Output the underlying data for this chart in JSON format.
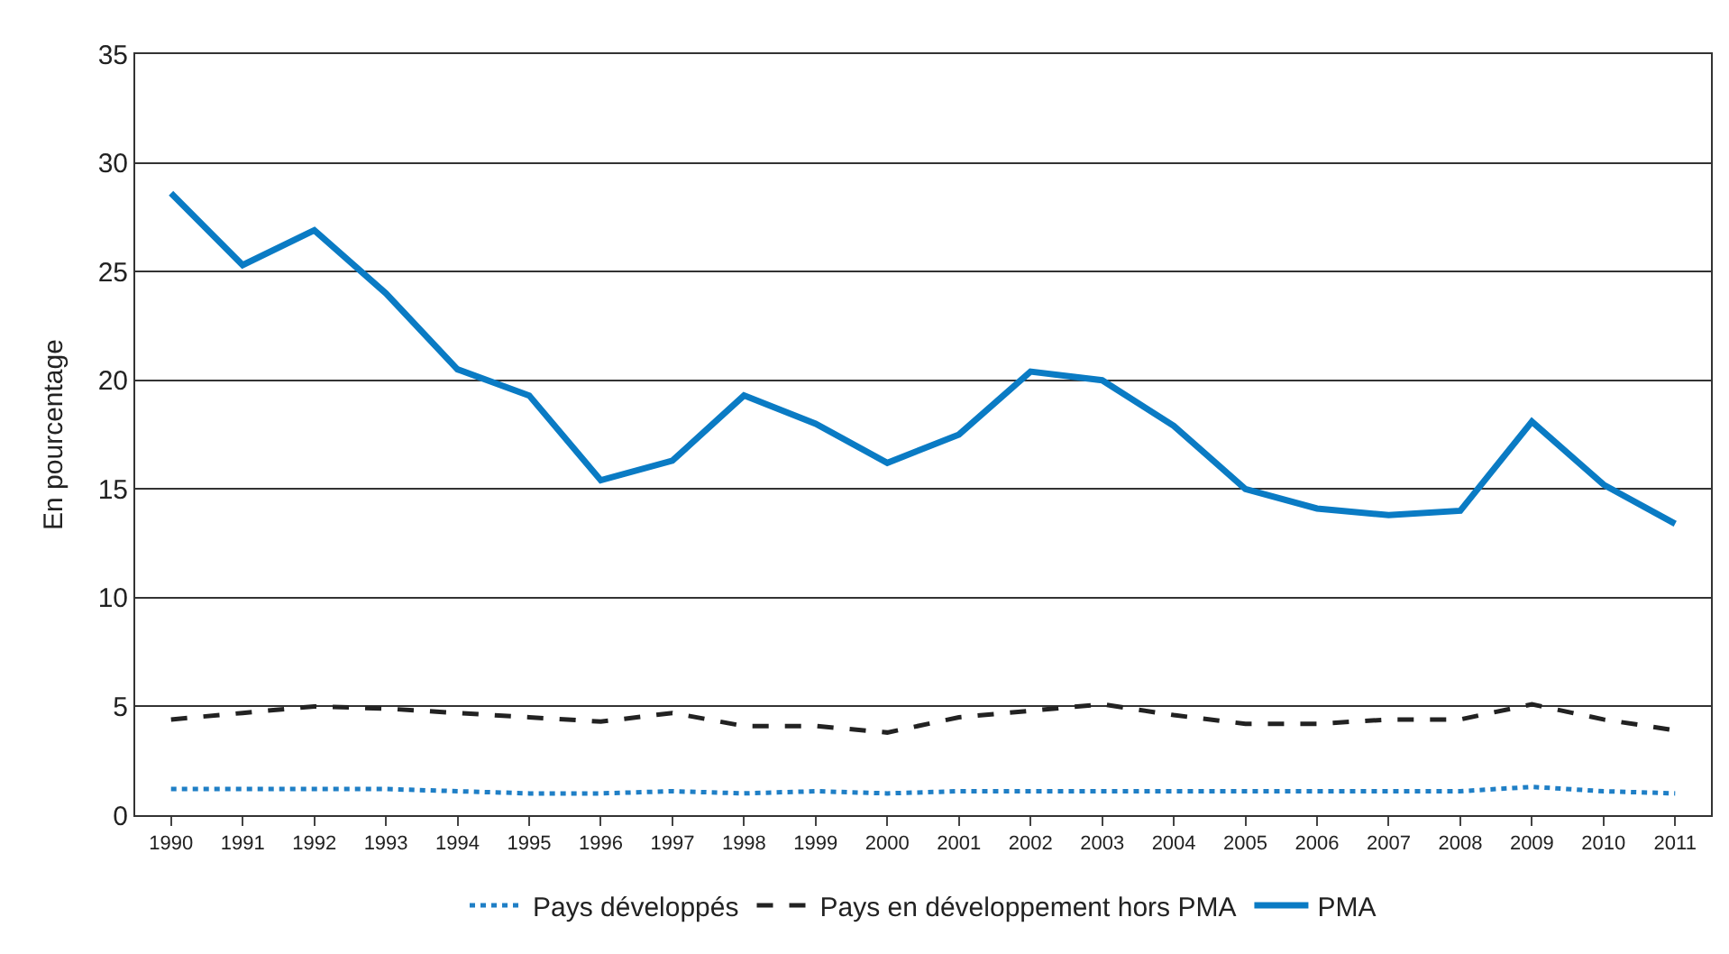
{
  "chart_data": {
    "type": "line",
    "ylabel": "En pourcentage",
    "categories": [
      "1990",
      "1991",
      "1992",
      "1993",
      "1994",
      "1995",
      "1996",
      "1997",
      "1998",
      "1999",
      "2000",
      "2001",
      "2002",
      "2003",
      "2004",
      "2005",
      "2006",
      "2007",
      "2008",
      "2009",
      "2010",
      "2011"
    ],
    "series": [
      {
        "name": "Pays développés",
        "color": "#1f7fc6",
        "line_style": "dotted",
        "values": [
          1.2,
          1.2,
          1.2,
          1.2,
          1.1,
          1.0,
          1.0,
          1.1,
          1.0,
          1.1,
          1.0,
          1.1,
          1.1,
          1.1,
          1.1,
          1.1,
          1.1,
          1.1,
          1.1,
          1.3,
          1.1,
          1.0
        ]
      },
      {
        "name": "Pays en développement hors PMA",
        "color": "#222222",
        "line_style": "dashed",
        "values": [
          4.4,
          4.7,
          5.0,
          4.9,
          4.7,
          4.5,
          4.3,
          4.7,
          4.1,
          4.1,
          3.8,
          4.5,
          4.8,
          5.1,
          4.6,
          4.2,
          4.2,
          4.4,
          4.4,
          5.1,
          4.4,
          3.9
        ]
      },
      {
        "name": "PMA",
        "color": "#0a7bc4",
        "line_style": "solid",
        "values": [
          28.6,
          25.3,
          26.9,
          24.0,
          20.5,
          19.3,
          15.4,
          16.3,
          19.3,
          18.0,
          16.2,
          17.5,
          20.4,
          20.0,
          17.9,
          15.0,
          14.1,
          13.8,
          14.0,
          18.1,
          15.2,
          13.4
        ]
      }
    ],
    "ylim": [
      0,
      35
    ],
    "yticks": [
      0,
      5,
      10,
      15,
      20,
      25,
      30,
      35
    ],
    "grid": "y",
    "legend": "bottom"
  }
}
